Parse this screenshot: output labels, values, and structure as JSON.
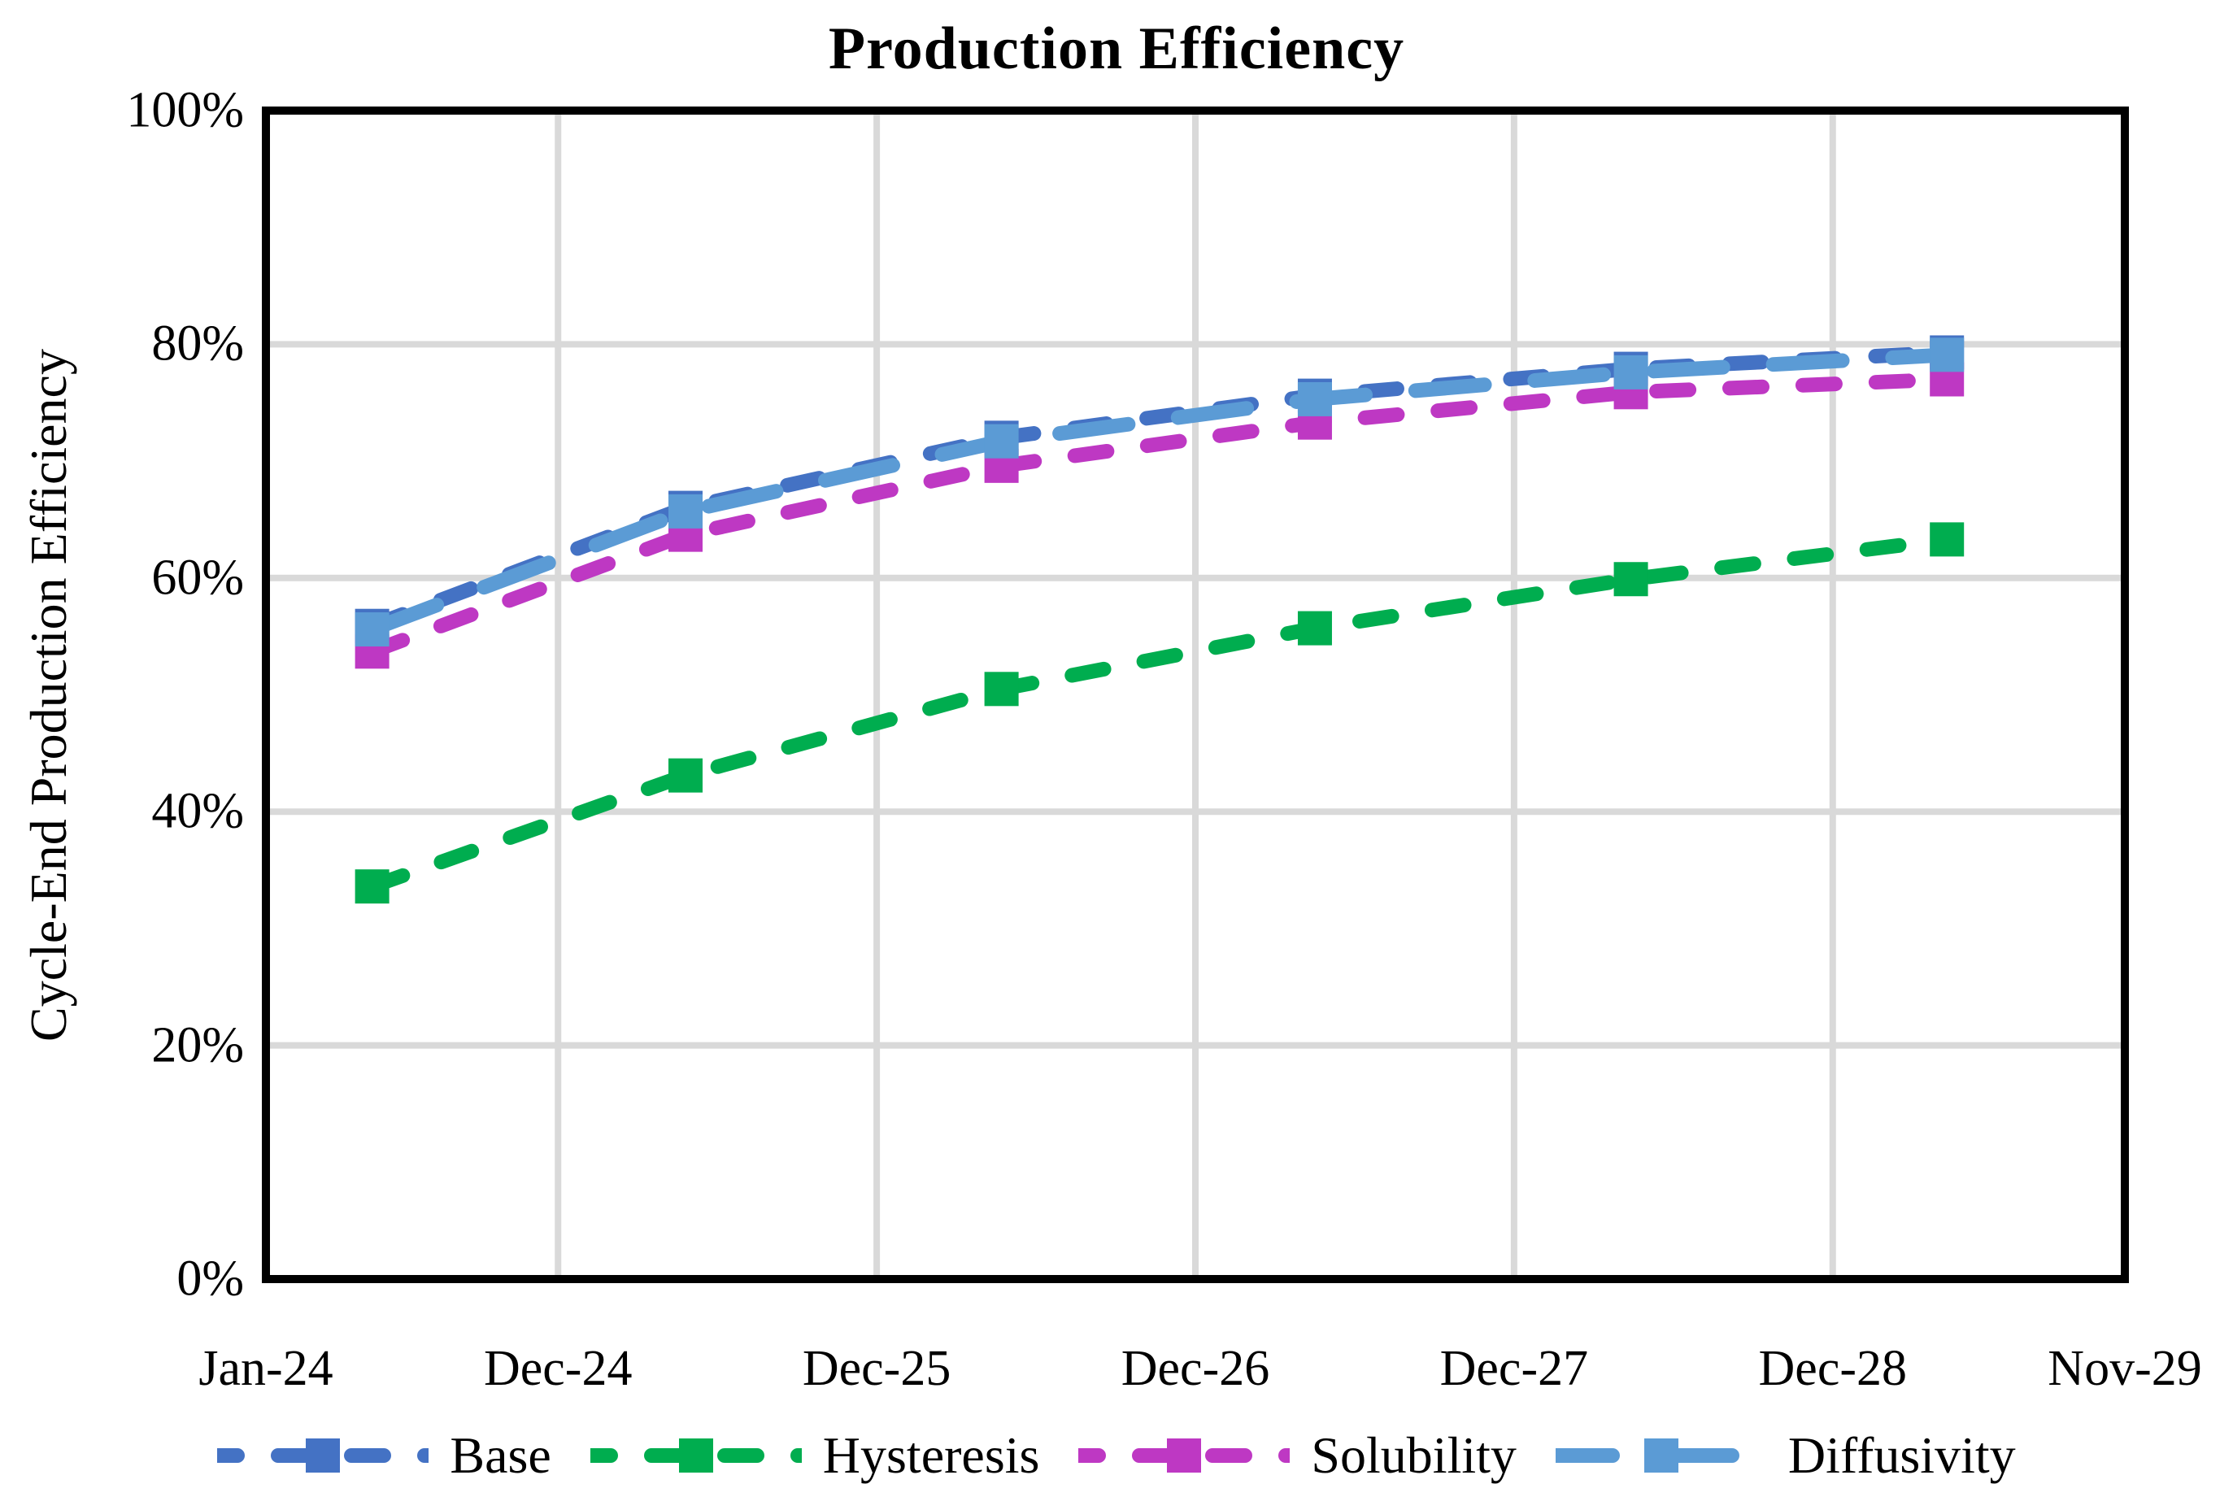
{
  "figure": {
    "title": "Production Efficiency",
    "background_color": "#ffffff",
    "border_color": "#000000",
    "gridline_color": "#d9d9d9"
  },
  "y_axis": {
    "title": "Cycle-End Production Efficiency",
    "ticks": [
      {
        "label": "100%",
        "value": 100
      },
      {
        "label": "80%",
        "value": 80
      },
      {
        "label": "60%",
        "value": 60
      },
      {
        "label": "40%",
        "value": 40
      },
      {
        "label": "20%",
        "value": 20
      },
      {
        "label": "0%",
        "value": 0
      }
    ]
  },
  "x_axis": {
    "ticks": [
      {
        "label": "Jan-24",
        "month": 0
      },
      {
        "label": "Dec-24",
        "month": 11
      },
      {
        "label": "Dec-25",
        "month": 23
      },
      {
        "label": "Dec-26",
        "month": 35
      },
      {
        "label": "Dec-27",
        "month": 47
      },
      {
        "label": "Dec-28",
        "month": 59
      },
      {
        "label": "Nov-29",
        "month": 70
      }
    ],
    "range_months": [
      0,
      70
    ]
  },
  "chart_data": {
    "type": "line",
    "title": "Production Efficiency",
    "xlabel": "",
    "ylabel": "Cycle-End Production Efficiency",
    "ylim": [
      0,
      100
    ],
    "grid": true,
    "marker": "square",
    "legend_position": "bottom",
    "x_months_after_jan24": [
      4,
      15.8,
      27.7,
      39.5,
      51.4,
      63.3
    ],
    "x_dates_approx": [
      "May-24",
      "Apr-25",
      "Apr-26",
      "Apr-27",
      "Apr-28",
      "Apr-29"
    ],
    "series": [
      {
        "name": "Base",
        "color": "#4472c4",
        "dash": "dash",
        "values": [
          55.9,
          66.0,
          72.0,
          75.6,
          77.9,
          79.3
        ]
      },
      {
        "name": "Hysteresis",
        "color": "#00ad4f",
        "dash": "dash",
        "values": [
          33.6,
          43.1,
          50.5,
          55.7,
          59.9,
          63.3
        ]
      },
      {
        "name": "Solubility",
        "color": "#be38c3",
        "dash": "dash",
        "values": [
          53.7,
          63.7,
          69.6,
          73.3,
          75.9,
          77.0
        ]
      },
      {
        "name": "Diffusivity",
        "color": "#5b9bd5",
        "dash": "long-dash",
        "values": [
          55.6,
          65.7,
          71.7,
          75.3,
          77.6,
          79.1
        ]
      }
    ]
  }
}
